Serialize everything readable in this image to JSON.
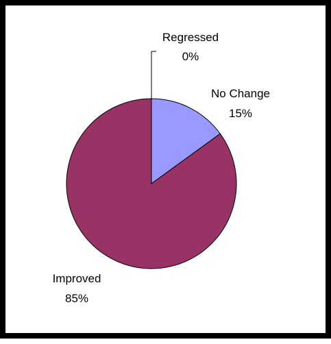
{
  "chart_data": {
    "type": "pie",
    "slices": [
      {
        "label": "Regressed",
        "value": 0,
        "value_label": "0%",
        "color": "#000000"
      },
      {
        "label": "No Change",
        "value": 15,
        "value_label": "15%",
        "color": "#9999ff"
      },
      {
        "label": "Improved",
        "value": 85,
        "value_label": "85%",
        "color": "#993366"
      }
    ],
    "start_angle_deg": 0,
    "direction": "clockwise",
    "slice_outline": "#000000",
    "legend": "none",
    "label_position": "outside"
  }
}
